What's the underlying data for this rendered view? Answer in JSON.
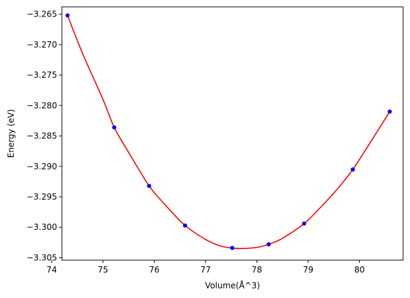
{
  "chart_data": {
    "type": "scatter",
    "xlabel": "Volume(Å^3)",
    "ylabel": "Energy (eV)",
    "xlim": [
      74.2,
      80.85
    ],
    "ylim": [
      -3.3054,
      -3.2638
    ],
    "x_ticks": [
      74,
      75,
      76,
      77,
      78,
      79,
      80
    ],
    "y_ticks": [
      -3.265,
      -3.27,
      -3.275,
      -3.28,
      -3.285,
      -3.29,
      -3.295,
      -3.3,
      -3.305
    ],
    "grid": false,
    "series": [
      {
        "kind": "points",
        "color": "#0000ff",
        "x": [
          74.31,
          75.22,
          75.9,
          76.6,
          77.52,
          78.23,
          78.92,
          79.87,
          80.59
        ],
        "y": [
          -3.2652,
          -3.2836,
          -3.2932,
          -3.2997,
          -3.3034,
          -3.3028,
          -3.2994,
          -3.2905,
          -3.281
        ]
      },
      {
        "kind": "fit-curve",
        "color": "#ff0000",
        "x": [
          74.31,
          74.6,
          75.0,
          75.22,
          75.5,
          75.9,
          76.2,
          76.6,
          77.0,
          77.3,
          77.52,
          77.7,
          78.0,
          78.23,
          78.5,
          78.92,
          79.3,
          79.6,
          79.87,
          80.2,
          80.59
        ],
        "y": [
          -3.2652,
          -3.2714,
          -3.279,
          -3.2836,
          -3.2877,
          -3.2932,
          -3.2962,
          -3.2997,
          -3.302,
          -3.3031,
          -3.3034,
          -3.3035,
          -3.3033,
          -3.3028,
          -3.3018,
          -3.2994,
          -3.2962,
          -3.2934,
          -3.2905,
          -3.2862,
          -3.281
        ]
      }
    ]
  }
}
